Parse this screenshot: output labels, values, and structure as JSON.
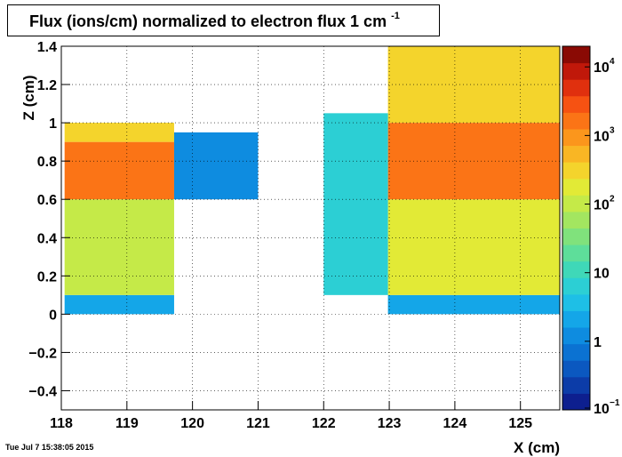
{
  "chart_data": {
    "type": "heatmap",
    "title_main": "Flux (ions/cm) normalized to electron flux 1 cm",
    "title_exp": "-1",
    "xlabel": "X (cm)",
    "ylabel": "Z (cm)",
    "xlim": [
      118,
      125.6
    ],
    "ylim": [
      -0.5,
      1.4
    ],
    "x_ticks": [
      "118",
      "119",
      "120",
      "121",
      "122",
      "123",
      "124",
      "125"
    ],
    "y_ticks": [
      "−0.4",
      "−0.2",
      "0",
      "0.2",
      "0.4",
      "0.6",
      "0.8",
      "1",
      "1.2",
      "1.4"
    ],
    "colorbar": {
      "scale": "log",
      "range": [
        0.1,
        20000
      ],
      "labels": [
        {
          "base": "10",
          "exp": "−1",
          "value": 0.1
        },
        {
          "base": "1",
          "exp": "",
          "value": 1
        },
        {
          "base": "10",
          "exp": "",
          "value": 10
        },
        {
          "base": "10",
          "exp": "2",
          "value": 100
        },
        {
          "base": "10",
          "exp": "3",
          "value": 1000
        },
        {
          "base": "10",
          "exp": "4",
          "value": 10000
        }
      ],
      "colors": [
        "#0d1f8f",
        "#0c3ca8",
        "#0b58c0",
        "#0b72d2",
        "#0e8ce0",
        "#14a6e8",
        "#1ebfe6",
        "#2ccfd4",
        "#3fd8b8",
        "#5ede9a",
        "#80e27c",
        "#a3e660",
        "#c5ea48",
        "#e2ea36",
        "#f4d42c",
        "#f9b624",
        "#fb961c",
        "#fb7416",
        "#f65212",
        "#e0300e",
        "#c0180a",
        "#8a0a04"
      ]
    },
    "regions": [
      {
        "name": "left-pad",
        "x": [
          118.05,
          119.72
        ],
        "z": [
          0.0,
          1.0
        ],
        "bands": [
          {
            "z": [
              0.0,
              0.1
            ],
            "value": 2
          },
          {
            "z": [
              0.1,
              0.6
            ],
            "value": 120
          },
          {
            "z": [
              0.6,
              0.9
            ],
            "value": 2000
          },
          {
            "z": [
              0.9,
              1.0
            ],
            "value": 300
          }
        ]
      },
      {
        "name": "mid-strip",
        "x": [
          119.72,
          121.0
        ],
        "z": [
          0.6,
          0.95
        ],
        "value": 1.2
      },
      {
        "name": "right-pad",
        "x": [
          122.98,
          125.6
        ],
        "z": [
          0.0,
          1.4
        ],
        "bands": [
          {
            "z": [
              0.0,
              0.1
            ],
            "value": 2
          },
          {
            "z": [
              0.1,
              0.6
            ],
            "value": 150
          },
          {
            "z": [
              0.6,
              1.0
            ],
            "value": 1500
          },
          {
            "z": [
              1.0,
              1.4
            ],
            "value": 250
          }
        ]
      },
      {
        "name": "center-column",
        "x": [
          122.0,
          122.98
        ],
        "z": [
          0.1,
          1.05
        ],
        "value": 6
      }
    ],
    "date_stamp": "Tue Jul  7 15:38:05 2015"
  }
}
